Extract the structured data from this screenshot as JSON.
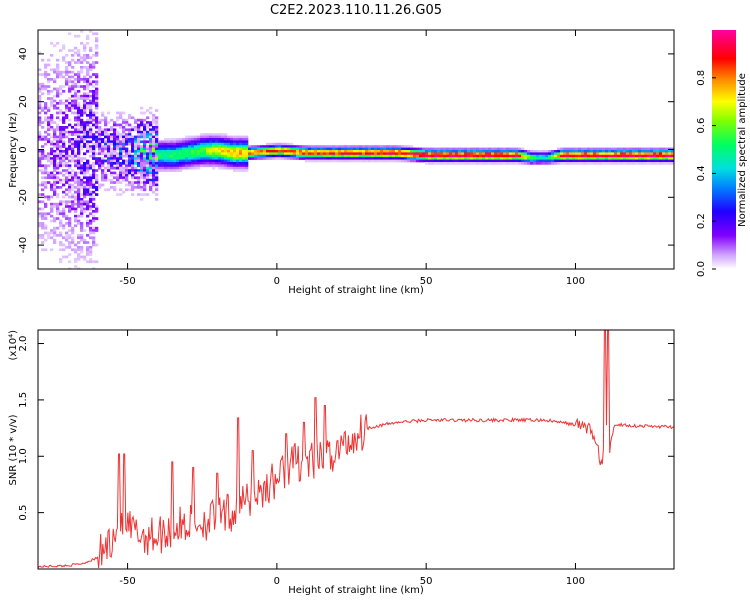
{
  "chart_data": [
    {
      "type": "heatmap",
      "title": "C2E2.2023.110.11.26.G05",
      "xlabel": "Height of straight line (km)",
      "ylabel": "Frequency (Hz)",
      "xlim": [
        -80,
        133
      ],
      "ylim": [
        -50,
        50
      ],
      "xticks": [
        -50,
        0,
        50,
        100
      ],
      "yticks": [
        -40,
        -20,
        0,
        20,
        40
      ],
      "ridge": {
        "description_x": [
          -80,
          -70,
          -60,
          -50,
          -45,
          -40,
          -35,
          -30,
          -25,
          -20,
          -15,
          -10,
          0,
          10,
          20,
          30,
          40,
          50,
          60,
          70,
          80,
          85,
          90,
          95,
          100,
          105,
          110,
          115,
          133
        ],
        "center_hz": [
          0,
          0,
          0,
          -1,
          -1,
          -2,
          -2,
          -1,
          0,
          0,
          -1,
          -1,
          0,
          -1,
          -1,
          -1,
          -1,
          -2,
          -2,
          -2,
          -2,
          -3,
          -3,
          -2,
          -2,
          -2,
          -2,
          -2,
          -2
        ],
        "peak_amp": [
          0.1,
          0.15,
          0.22,
          0.3,
          0.45,
          0.5,
          0.52,
          0.55,
          0.6,
          0.7,
          0.75,
          0.78,
          0.85,
          0.85,
          0.88,
          0.9,
          0.92,
          0.95,
          0.95,
          0.96,
          0.95,
          0.55,
          0.45,
          0.95,
          0.95,
          0.95,
          0.9,
          0.97,
          0.97
        ]
      },
      "colorbar": {
        "label": "Normalized spectral amplitude",
        "range": [
          0,
          1
        ],
        "ticks": [
          "0.0",
          "0.2",
          "0.4",
          "0.6",
          "0.8"
        ],
        "tick_values": [
          0,
          0.2,
          0.4,
          0.6,
          0.8
        ],
        "colors": [
          "#ffffff",
          "#c080ff",
          "#6000ff",
          "#0040ff",
          "#00c0ff",
          "#00ff80",
          "#80ff00",
          "#ffff00",
          "#ff8000",
          "#ff0000",
          "#ff00a0"
        ]
      }
    },
    {
      "type": "line",
      "title": "",
      "xlabel": "Height of straight line (km)",
      "ylabel": "SNR (10 * v/v)",
      "scale_label": "(x10⁴)",
      "xlim": [
        -80,
        133
      ],
      "ylim": [
        0,
        2.12
      ],
      "xticks": [
        -50,
        0,
        50,
        100
      ],
      "yticks": [
        "0.5",
        "1.0",
        "1.5",
        "2.0"
      ],
      "ytick_values": [
        0.5,
        1.0,
        1.5,
        2.0
      ],
      "color": "#ee3333",
      "series": [
        {
          "name": "SNR",
          "x": [
            -80,
            -70,
            -65,
            -60,
            -57,
            -55,
            -52,
            -50,
            -45,
            -40,
            -35,
            -30,
            -25,
            -20,
            -15,
            -10,
            -5,
            0,
            5,
            10,
            15,
            20,
            25,
            30,
            40,
            50,
            60,
            70,
            80,
            90,
            95,
            100,
            105,
            107,
            109,
            110,
            111,
            113,
            115,
            120,
            133
          ],
          "y": [
            0.02,
            0.03,
            0.05,
            0.1,
            0.2,
            0.3,
            0.4,
            0.35,
            0.3,
            0.3,
            0.35,
            0.4,
            0.42,
            0.45,
            0.5,
            0.6,
            0.7,
            0.8,
            0.95,
            0.95,
            0.95,
            1.05,
            1.15,
            1.25,
            1.3,
            1.32,
            1.32,
            1.32,
            1.32,
            1.32,
            1.3,
            1.28,
            1.25,
            1.1,
            0.9,
            1.4,
            1.0,
            1.28,
            1.28,
            1.27,
            1.26
          ]
        }
      ],
      "spikes": [
        {
          "x": -53,
          "y": 1.02
        },
        {
          "x": -51,
          "y": 1.02
        },
        {
          "x": -35,
          "y": 0.95
        },
        {
          "x": -28,
          "y": 0.9
        },
        {
          "x": -20,
          "y": 0.85
        },
        {
          "x": -13,
          "y": 1.34
        },
        {
          "x": -8,
          "y": 1.05
        },
        {
          "x": 3,
          "y": 1.2
        },
        {
          "x": 9,
          "y": 1.3
        },
        {
          "x": 13,
          "y": 1.52
        },
        {
          "x": 16,
          "y": 1.45
        },
        {
          "x": 110,
          "y": 2.12
        },
        {
          "x": 111,
          "y": 2.12
        }
      ]
    }
  ]
}
